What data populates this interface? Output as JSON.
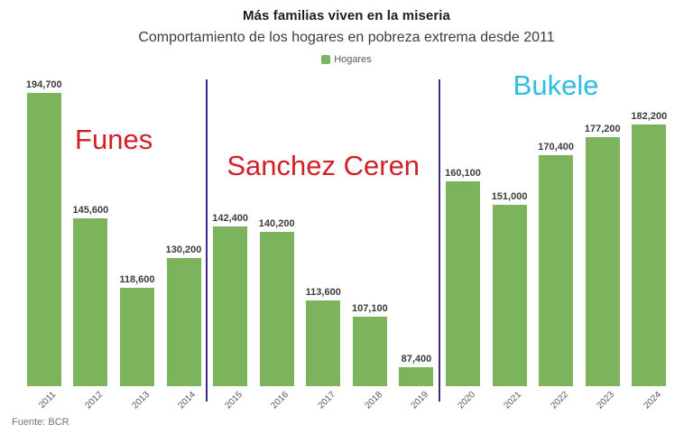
{
  "source": "Fuente: BCR",
  "chart_data": {
    "type": "bar",
    "title": "Más familias viven en la miseria",
    "subtitle": "Comportamiento de los hogares en pobreza extrema desde 2011",
    "legend": [
      "Hogares"
    ],
    "legend_position": "top-center",
    "categories": [
      "2011",
      "2012",
      "2013",
      "2014",
      "2015",
      "2016",
      "2017",
      "2018",
      "2019",
      "2020",
      "2021",
      "2022",
      "2023",
      "2024"
    ],
    "values": [
      194700,
      145600,
      118600,
      130200,
      142400,
      140200,
      113600,
      107100,
      87400,
      160100,
      151000,
      170400,
      177200,
      182200
    ],
    "xlabel": "",
    "ylabel": "",
    "y_axis": {
      "min": 80000,
      "max": 201000,
      "visible": false
    },
    "grid": false,
    "value_labels": true,
    "value_label_format": "thousands-comma",
    "x_tick_rotation": -45,
    "bar_color": "#7cb45e",
    "divider_color": "#3d2b85",
    "annotations": [
      {
        "label": "Funes",
        "color": "#cf2127",
        "start_index": 0,
        "end_index": 3,
        "label_center_y": 155
      },
      {
        "label": "Sanchez Ceren",
        "color": "#cf2127",
        "start_index": 4,
        "end_index": 8,
        "label_center_y": 184
      },
      {
        "label": "Bukele",
        "color": "#2ebcdf",
        "start_index": 9,
        "end_index": 13,
        "label_center_y": 95
      }
    ]
  }
}
